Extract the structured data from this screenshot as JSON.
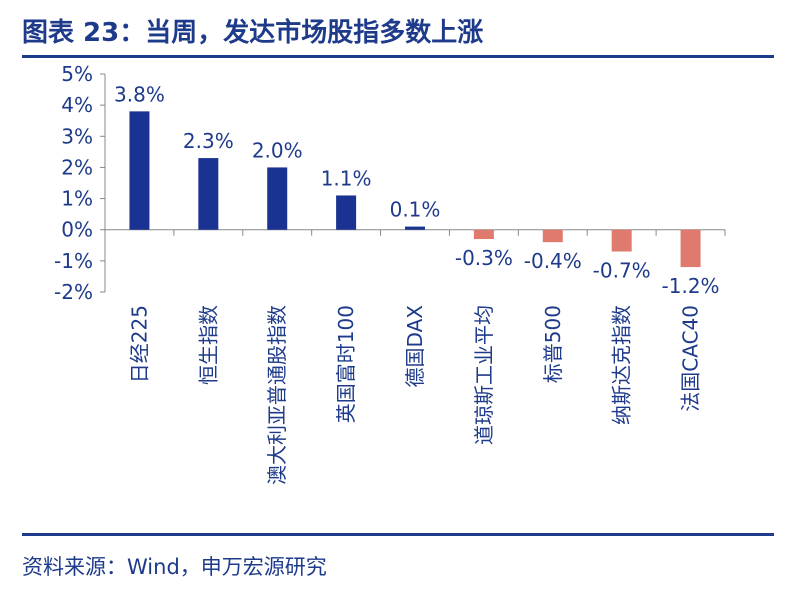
{
  "header": {
    "title": "图表 23：当周，发达市场股指多数上涨"
  },
  "footer": {
    "source": "资料来源：Wind，申万宏源研究"
  },
  "colors": {
    "positive": "#1a3291",
    "negative": "#e07a6e",
    "text": "#1e3a8a",
    "axis": "#888888"
  },
  "chart_data": {
    "type": "bar",
    "title": "当周，发达市场股指多数上涨",
    "xlabel": "",
    "ylabel": "",
    "ylim": [
      -2,
      5
    ],
    "yticks": [
      5,
      4,
      3,
      2,
      1,
      0,
      -1,
      -2
    ],
    "ytick_labels": [
      "5%",
      "4%",
      "3%",
      "2%",
      "1%",
      "0%",
      "-1%",
      "-2%"
    ],
    "grid": false,
    "categories": [
      "日经225",
      "恒生指数",
      "澳大利亚普通股指数",
      "英国富时100",
      "德国DAX",
      "道琼斯工业平均",
      "标普500",
      "纳斯达克指数",
      "法国CAC40"
    ],
    "values": [
      3.8,
      2.3,
      2.0,
      1.1,
      0.1,
      -0.3,
      -0.4,
      -0.7,
      -1.2
    ],
    "data_labels": [
      "3.8%",
      "2.3%",
      "2.0%",
      "1.1%",
      "0.1%",
      "-0.3%",
      "-0.4%",
      "-0.7%",
      "-1.2%"
    ]
  }
}
